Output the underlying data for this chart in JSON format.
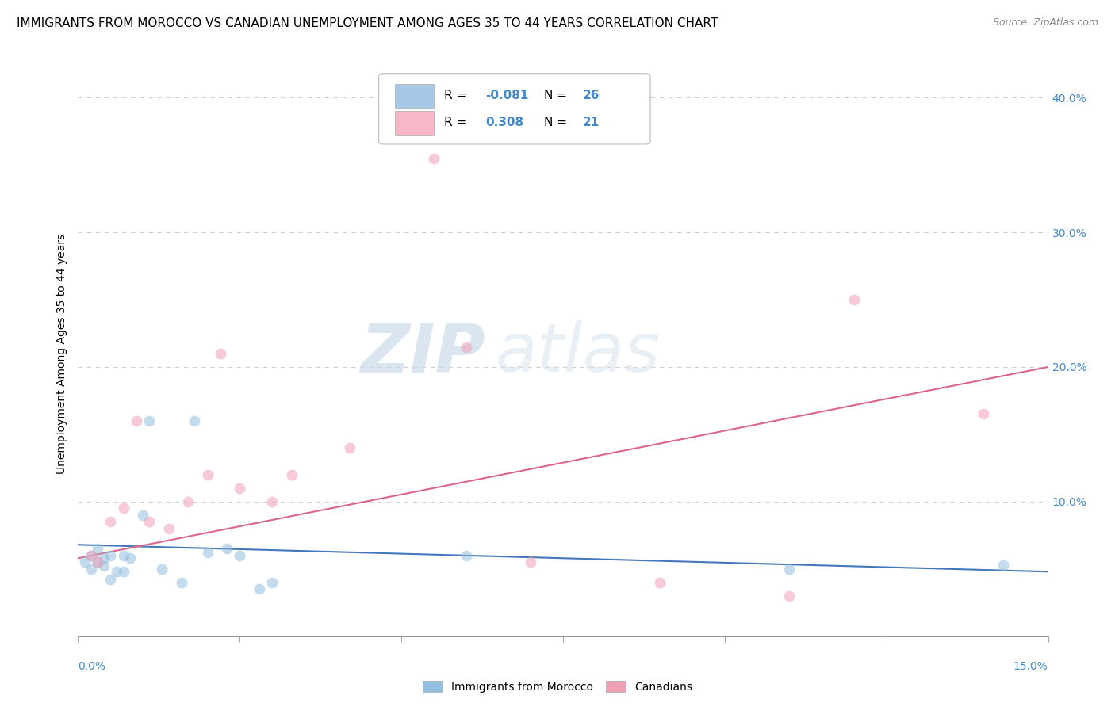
{
  "title": "IMMIGRANTS FROM MOROCCO VS CANADIAN UNEMPLOYMENT AMONG AGES 35 TO 44 YEARS CORRELATION CHART",
  "source": "Source: ZipAtlas.com",
  "ylabel": "Unemployment Among Ages 35 to 44 years",
  "watermark_zip": "ZIP",
  "watermark_atlas": "atlas",
  "xlim": [
    0.0,
    0.15
  ],
  "ylim": [
    0.0,
    0.42
  ],
  "yticks": [
    0.0,
    0.1,
    0.2,
    0.3,
    0.4
  ],
  "ytick_labels": [
    "",
    "10.0%",
    "20.0%",
    "30.0%",
    "40.0%"
  ],
  "legend_line1": "R = -0.081  N = 26",
  "legend_line2": "R =  0.308  N = 21",
  "legend_color1": "#a8c8e8",
  "legend_color2": "#f8b8c8",
  "blue_scatter_x": [
    0.001,
    0.002,
    0.002,
    0.003,
    0.003,
    0.004,
    0.004,
    0.005,
    0.005,
    0.006,
    0.007,
    0.007,
    0.008,
    0.01,
    0.011,
    0.013,
    0.016,
    0.018,
    0.02,
    0.023,
    0.025,
    0.028,
    0.03,
    0.06,
    0.11,
    0.143
  ],
  "blue_scatter_y": [
    0.055,
    0.05,
    0.06,
    0.055,
    0.065,
    0.058,
    0.052,
    0.06,
    0.042,
    0.048,
    0.048,
    0.06,
    0.058,
    0.09,
    0.16,
    0.05,
    0.04,
    0.16,
    0.062,
    0.065,
    0.06,
    0.035,
    0.04,
    0.06,
    0.05,
    0.053
  ],
  "pink_scatter_x": [
    0.002,
    0.003,
    0.005,
    0.007,
    0.009,
    0.011,
    0.014,
    0.017,
    0.02,
    0.022,
    0.025,
    0.03,
    0.033,
    0.042,
    0.055,
    0.06,
    0.07,
    0.09,
    0.11,
    0.12,
    0.14
  ],
  "pink_scatter_y": [
    0.06,
    0.055,
    0.085,
    0.095,
    0.16,
    0.085,
    0.08,
    0.1,
    0.12,
    0.21,
    0.11,
    0.1,
    0.12,
    0.14,
    0.355,
    0.215,
    0.055,
    0.04,
    0.03,
    0.25,
    0.165
  ],
  "blue_line_x": [
    0.0,
    0.15
  ],
  "blue_line_y": [
    0.068,
    0.048
  ],
  "pink_line_x": [
    0.0,
    0.15
  ],
  "pink_line_y": [
    0.058,
    0.2
  ],
  "blue_color": "#92bfdf",
  "pink_color": "#f0a0b5",
  "blue_line_color": "#4477bb",
  "pink_line_color": "#dd6688",
  "background_color": "#ffffff",
  "grid_color": "#d0d0d0",
  "title_fontsize": 11,
  "axis_label_fontsize": 10,
  "tick_fontsize": 10,
  "scatter_size": 100,
  "scatter_alpha": 0.55,
  "right_tick_color": "#4488cc"
}
